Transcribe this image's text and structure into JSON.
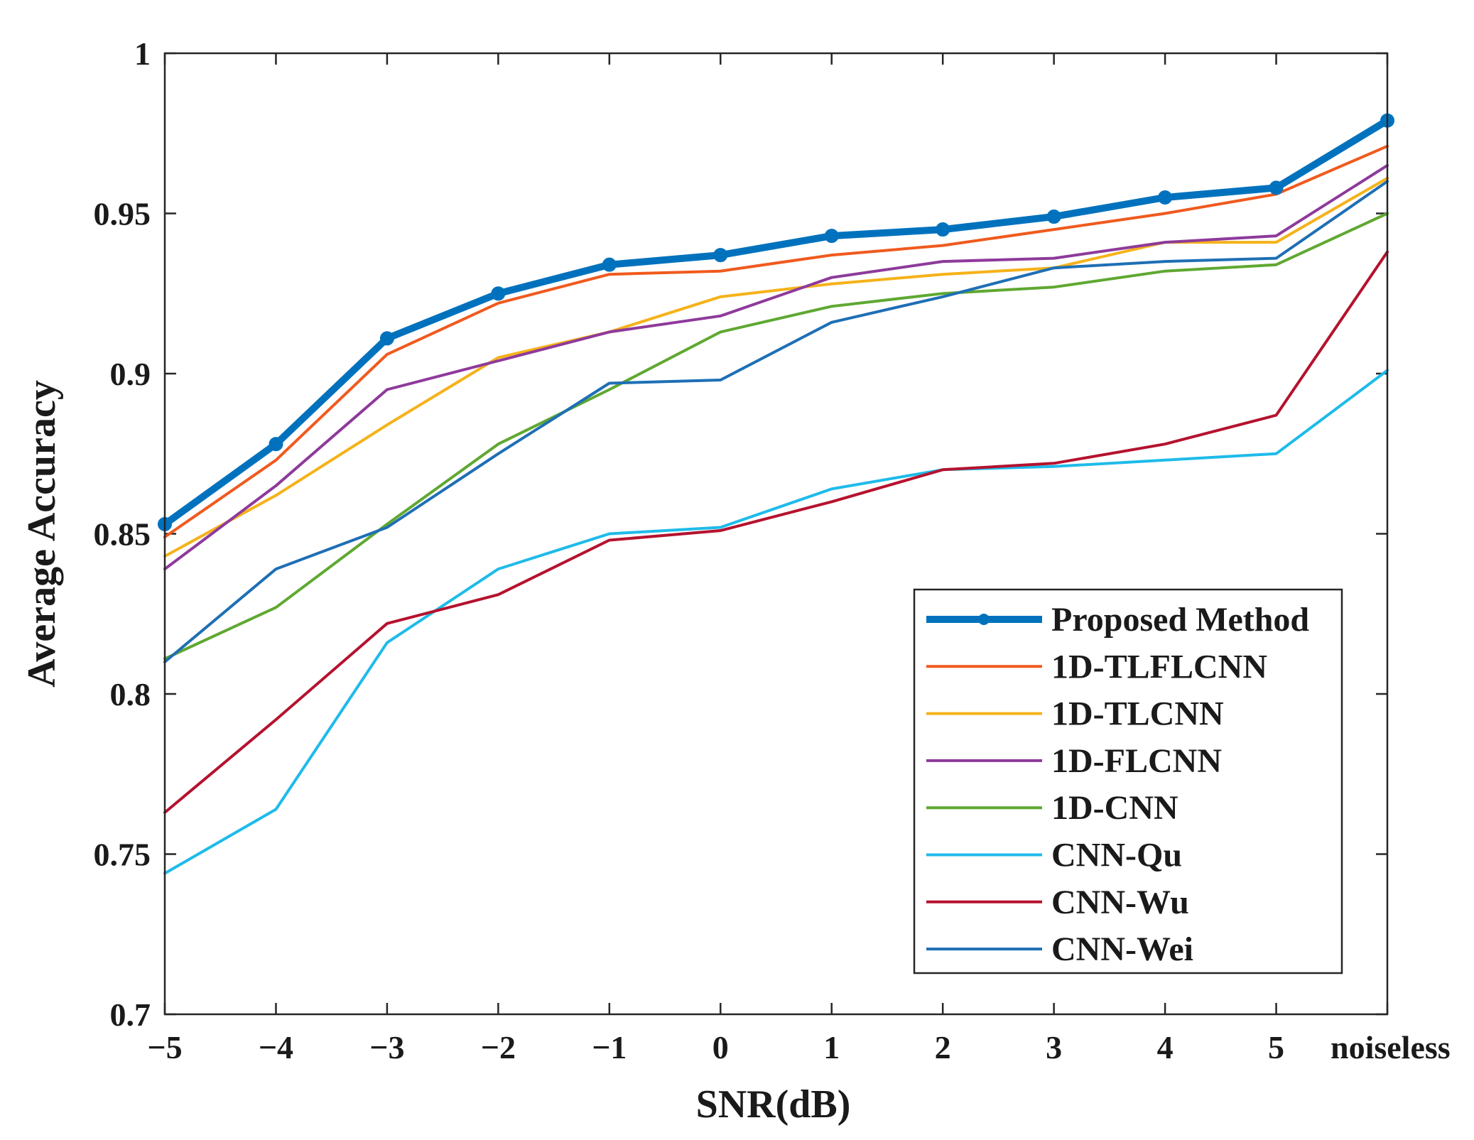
{
  "chart_data": {
    "type": "line",
    "title": "",
    "xlabel": "SNR(dB)",
    "ylabel": "Average Accuracy",
    "categories": [
      "−5",
      "−4",
      "−3",
      "−2",
      "−1",
      "0",
      "1",
      "2",
      "3",
      "4",
      "5",
      "noiseless"
    ],
    "ylim": [
      0.7,
      1.0
    ],
    "yticks": [
      0.7,
      0.75,
      0.8,
      0.85,
      0.9,
      0.95,
      1.0
    ],
    "ytick_labels": [
      "0.7",
      "0.75",
      "0.8",
      "0.85",
      "0.9",
      "0.95",
      "1"
    ],
    "grid": false,
    "legend_position": "bottom-right",
    "series": [
      {
        "name": "Proposed Method",
        "color": "#0072BD",
        "emphasis": true,
        "markers": true,
        "values": [
          0.853,
          0.878,
          0.911,
          0.925,
          0.934,
          0.937,
          0.943,
          0.945,
          0.949,
          0.955,
          0.958,
          0.979
        ]
      },
      {
        "name": "1D-TLFLCNN",
        "color": "#F05A1E",
        "emphasis": false,
        "markers": false,
        "values": [
          0.849,
          0.873,
          0.906,
          0.922,
          0.931,
          0.932,
          0.937,
          0.94,
          0.945,
          0.95,
          0.956,
          0.971
        ]
      },
      {
        "name": "1D-TLCNN",
        "color": "#F5B21A",
        "emphasis": false,
        "markers": false,
        "values": [
          0.843,
          0.862,
          0.884,
          0.905,
          0.913,
          0.924,
          0.928,
          0.931,
          0.933,
          0.941,
          0.941,
          0.961
        ]
      },
      {
        "name": "1D-FLCNN",
        "color": "#8E3A9B",
        "emphasis": false,
        "markers": false,
        "values": [
          0.839,
          0.865,
          0.895,
          0.904,
          0.913,
          0.918,
          0.93,
          0.935,
          0.936,
          0.941,
          0.943,
          0.965
        ]
      },
      {
        "name": "1D-CNN",
        "color": "#5FA831",
        "emphasis": false,
        "markers": false,
        "values": [
          0.811,
          0.827,
          0.853,
          0.878,
          0.895,
          0.913,
          0.921,
          0.925,
          0.927,
          0.932,
          0.934,
          0.95
        ]
      },
      {
        "name": "CNN-Qu",
        "color": "#1EBBEA",
        "emphasis": false,
        "markers": false,
        "values": [
          0.744,
          0.764,
          0.816,
          0.839,
          0.85,
          0.852,
          0.864,
          0.87,
          0.871,
          0.873,
          0.875,
          0.901
        ]
      },
      {
        "name": "CNN-Wu",
        "color": "#B5122E",
        "emphasis": false,
        "markers": false,
        "values": [
          0.763,
          0.792,
          0.822,
          0.831,
          0.848,
          0.851,
          0.86,
          0.87,
          0.872,
          0.878,
          0.887,
          0.938
        ]
      },
      {
        "name": "CNN-Wei",
        "color": "#1E6FB5",
        "emphasis": false,
        "markers": false,
        "values": [
          0.81,
          0.839,
          0.852,
          0.875,
          0.897,
          0.898,
          0.916,
          0.924,
          0.933,
          0.935,
          0.936,
          0.96
        ]
      }
    ]
  }
}
